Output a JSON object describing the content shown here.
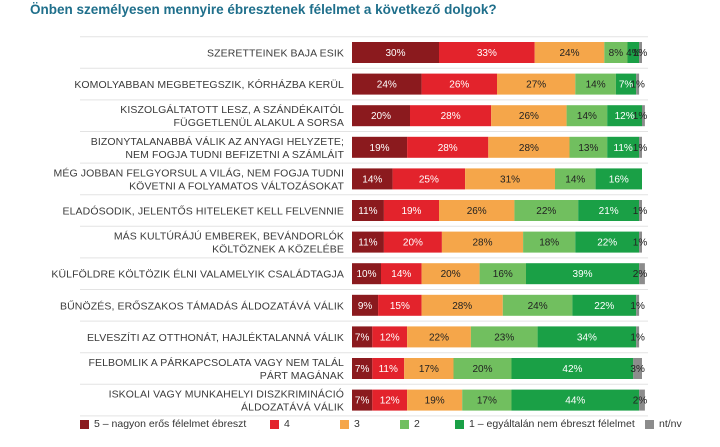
{
  "title": "Önben személyesen mennyire ébresztenek félelmet a következő dolgok?",
  "colors": {
    "c5": "#8b1a1e",
    "c4": "#e3232c",
    "c3": "#f5a64a",
    "c2": "#71bf5f",
    "c1": "#1aa046",
    "nt": "#8c8c8c"
  },
  "chart_data": {
    "type": "bar",
    "orientation": "horizontal",
    "stacked": true,
    "xlim": [
      0,
      100
    ],
    "title": "Önben személyesen mennyire ébresztenek félelmet a következő dolgok?",
    "categories": [
      [
        "Szeretteinek baja esik"
      ],
      [
        "Komolyabban megbetegszik, kórházba kerül"
      ],
      [
        "Kiszolgáltatott lesz, a szándékaitól",
        "függetlenül alakul a sorsa"
      ],
      [
        "Bizonytalanabbá válik az anyagi helyzete;",
        "nem fogja tudni befizetni a számláit"
      ],
      [
        "Még jobban felgyorsul a világ, nem fogja tudni",
        "követni a folyamatos változásokat"
      ],
      [
        "Eladósodik, jelentős hiteleket kell felvennie"
      ],
      [
        "Más kultúrájú emberek, bevándorlók",
        "költöznek a közelébe"
      ],
      [
        "Külföldre költözik élni valamelyik családtagja"
      ],
      [
        "Bűnözés, erőszakos támadás áldozatává válik"
      ],
      [
        "Elveszíti az otthonát, hajléktalanná válik"
      ],
      [
        "Felbomlik a párkapcsolata vagy nem talál",
        "párt magának"
      ],
      [
        "Iskolai vagy munkahelyi diszkrimináció",
        "áldozatává válik"
      ]
    ],
    "series": [
      {
        "name": "5 – nagyon erős félelmet ébreszt",
        "color": "#8b1a1e",
        "values": [
          30,
          24,
          20,
          19,
          14,
          11,
          11,
          10,
          9,
          7,
          7,
          7
        ]
      },
      {
        "name": "4",
        "color": "#e3232c",
        "values": [
          33,
          26,
          28,
          28,
          25,
          19,
          20,
          14,
          15,
          12,
          11,
          12
        ]
      },
      {
        "name": "3",
        "color": "#f5a64a",
        "values": [
          24,
          27,
          26,
          28,
          31,
          26,
          28,
          20,
          28,
          22,
          17,
          19
        ]
      },
      {
        "name": "2",
        "color": "#71bf5f",
        "values": [
          8,
          14,
          14,
          13,
          14,
          22,
          18,
          16,
          24,
          23,
          20,
          17
        ]
      },
      {
        "name": "1 – egyáltalán nem ébreszt félelmet",
        "color": "#1aa046",
        "values": [
          4,
          7,
          12,
          11,
          16,
          21,
          22,
          39,
          22,
          34,
          42,
          44
        ]
      },
      {
        "name": "nt/nv",
        "color": "#8c8c8c",
        "values": [
          1,
          1,
          1,
          1,
          0,
          1,
          1,
          2,
          1,
          1,
          3,
          2
        ]
      }
    ]
  }
}
